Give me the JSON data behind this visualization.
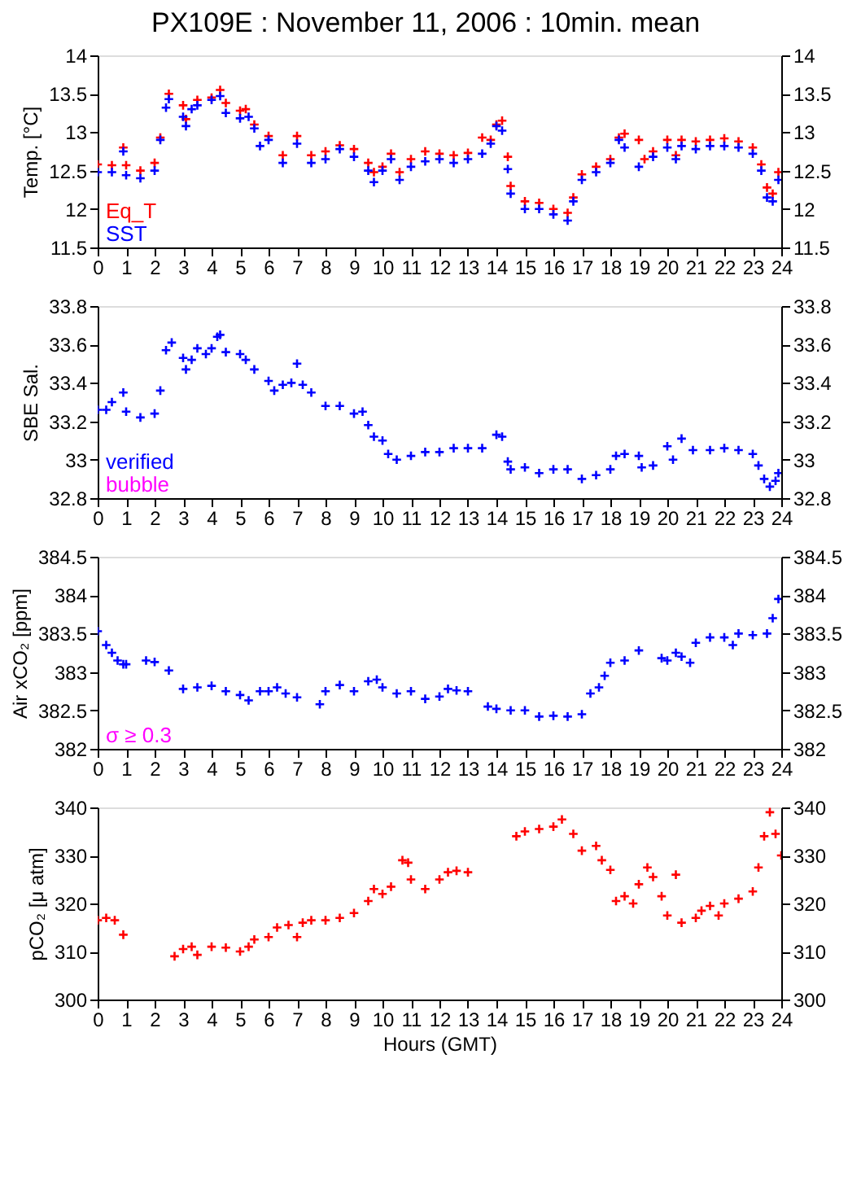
{
  "chart_data": [
    {
      "type": "scatter",
      "title": "PX109E : November 11, 2006 : 10min. mean",
      "ylabel": "Temp. [°C]",
      "xlim": [
        0,
        24
      ],
      "xticks": [
        0,
        1,
        2,
        3,
        4,
        5,
        6,
        7,
        8,
        9,
        10,
        11,
        12,
        13,
        14,
        15,
        16,
        17,
        18,
        19,
        20,
        21,
        22,
        23,
        24
      ],
      "ylim": [
        11.5,
        14
      ],
      "yticks": [
        11.5,
        12,
        12.5,
        13,
        13.5,
        14
      ],
      "y2lim": [
        11.5,
        14
      ],
      "y2ticks": [
        11.5,
        12,
        12.5,
        13,
        13.5,
        14
      ],
      "marker": "cross",
      "legend": "bottom left",
      "grid": false,
      "series": [
        {
          "name": "Eq_T",
          "color": "#ff0000",
          "x": [
            0,
            0.5,
            0.9,
            1,
            1.5,
            2,
            2.2,
            2.5,
            3,
            3.1,
            3.5,
            4,
            4.3,
            4.5,
            5,
            5.2,
            5.5,
            6,
            6.5,
            7,
            7.5,
            8,
            8.5,
            9,
            9.5,
            9.7,
            10,
            10.3,
            10.6,
            11,
            11.5,
            12,
            12.5,
            13,
            13.5,
            13.8,
            14,
            14.2,
            14.4,
            14.5,
            15,
            15.5,
            16,
            16.5,
            16.7,
            17,
            17.5,
            18,
            18.3,
            18.5,
            19,
            19.2,
            19.5,
            20,
            20.3,
            20.5,
            21,
            21.5,
            22,
            22.5,
            23,
            23.3,
            23.5,
            23.7,
            23.9
          ],
          "values": [
            12.58,
            12.57,
            12.8,
            12.57,
            12.5,
            12.6,
            12.93,
            13.5,
            13.35,
            13.17,
            13.42,
            13.45,
            13.55,
            13.38,
            13.28,
            13.3,
            13.1,
            12.95,
            12.7,
            12.95,
            12.7,
            12.75,
            12.83,
            12.78,
            12.6,
            12.48,
            12.55,
            12.72,
            12.48,
            12.65,
            12.75,
            12.72,
            12.7,
            12.73,
            12.93,
            12.9,
            13.1,
            13.15,
            12.68,
            12.3,
            12.1,
            12.08,
            12.0,
            11.95,
            12.15,
            12.45,
            12.55,
            12.65,
            12.93,
            12.98,
            12.9,
            12.65,
            12.75,
            12.9,
            12.7,
            12.9,
            12.88,
            12.9,
            12.92,
            12.88,
            12.8,
            12.58,
            12.28,
            12.2,
            12.48
          ]
        },
        {
          "name": "SST",
          "color": "#0000ff",
          "x": [
            0,
            0.5,
            0.9,
            1,
            1.5,
            2,
            2.2,
            2.4,
            2.5,
            3,
            3.1,
            3.3,
            3.5,
            4,
            4.3,
            4.5,
            5,
            5.3,
            5.5,
            5.7,
            6,
            6.5,
            7,
            7.5,
            8,
            8.5,
            9,
            9.5,
            9.7,
            10,
            10.3,
            10.6,
            11,
            11.5,
            12,
            12.5,
            13,
            13.5,
            13.8,
            14,
            14.2,
            14.4,
            14.5,
            15,
            15.5,
            16,
            16.5,
            16.7,
            17,
            17.5,
            18,
            18.3,
            18.5,
            19,
            19.5,
            20,
            20.3,
            20.5,
            21,
            21.5,
            22,
            22.5,
            23,
            23.3,
            23.5,
            23.7,
            23.9
          ],
          "values": [
            12.48,
            12.48,
            12.75,
            12.44,
            12.4,
            12.5,
            12.9,
            13.32,
            13.43,
            13.2,
            13.08,
            13.3,
            13.35,
            13.42,
            13.47,
            13.25,
            13.18,
            13.2,
            13.05,
            12.82,
            12.9,
            12.6,
            12.85,
            12.6,
            12.65,
            12.78,
            12.68,
            12.5,
            12.35,
            12.5,
            12.65,
            12.38,
            12.55,
            12.62,
            12.65,
            12.6,
            12.65,
            12.72,
            12.85,
            13.08,
            13.02,
            12.52,
            12.2,
            12.0,
            12.0,
            11.93,
            11.85,
            12.1,
            12.38,
            12.48,
            12.6,
            12.9,
            12.8,
            12.55,
            12.68,
            12.8,
            12.65,
            12.82,
            12.78,
            12.82,
            12.82,
            12.8,
            12.72,
            12.5,
            12.15,
            12.1,
            12.38
          ]
        }
      ]
    },
    {
      "type": "scatter",
      "ylabel": "SBE Sal.",
      "xlim": [
        0,
        24
      ],
      "xticks": [
        0,
        1,
        2,
        3,
        4,
        5,
        6,
        7,
        8,
        9,
        10,
        11,
        12,
        13,
        14,
        15,
        16,
        17,
        18,
        19,
        20,
        21,
        22,
        23,
        24
      ],
      "ylim": [
        32.8,
        33.8
      ],
      "yticks": [
        32.8,
        33,
        33.2,
        33.4,
        33.6,
        33.8
      ],
      "y2lim": [
        32.8,
        33.8
      ],
      "y2ticks": [
        32.8,
        33,
        33.2,
        33.4,
        33.6,
        33.8
      ],
      "marker": "cross",
      "legend": "bottom left",
      "grid": false,
      "series": [
        {
          "name": "verified",
          "color": "#0000ff",
          "x": [
            0,
            0.3,
            0.5,
            0.9,
            1,
            1.5,
            2,
            2.2,
            2.4,
            2.6,
            3,
            3.1,
            3.3,
            3.5,
            3.8,
            4,
            4.2,
            4.3,
            4.5,
            5,
            5.2,
            5.5,
            6,
            6.2,
            6.5,
            6.8,
            7,
            7.2,
            7.5,
            8,
            8.5,
            9,
            9.3,
            9.5,
            9.7,
            10,
            10.2,
            10.5,
            11,
            11.5,
            12,
            12.5,
            13,
            13.5,
            14,
            14.2,
            14.4,
            14.5,
            15,
            15.5,
            16,
            16.5,
            17,
            17.5,
            18,
            18.2,
            18.5,
            19,
            19.1,
            19.5,
            20,
            20.2,
            20.5,
            20.9,
            21.5,
            22,
            22.5,
            23,
            23.2,
            23.4,
            23.6,
            23.8,
            23.9
          ],
          "values": [
            33.26,
            33.26,
            33.3,
            33.35,
            33.25,
            33.22,
            33.24,
            33.36,
            33.57,
            33.61,
            33.53,
            33.47,
            33.52,
            33.58,
            33.55,
            33.58,
            33.64,
            33.65,
            33.56,
            33.55,
            33.52,
            33.47,
            33.41,
            33.36,
            33.39,
            33.4,
            33.5,
            33.39,
            33.35,
            33.28,
            33.28,
            33.24,
            33.25,
            33.18,
            33.12,
            33.1,
            33.03,
            33.0,
            33.02,
            33.04,
            33.04,
            33.06,
            33.06,
            33.06,
            33.13,
            33.12,
            32.99,
            32.95,
            32.96,
            32.93,
            32.95,
            32.95,
            32.9,
            32.92,
            32.95,
            33.02,
            33.03,
            33.02,
            32.96,
            32.97,
            33.07,
            33.0,
            33.11,
            33.05,
            33.05,
            33.06,
            33.05,
            33.03,
            32.97,
            32.9,
            32.86,
            32.89,
            32.93
          ]
        },
        {
          "name": "bubble",
          "color": "#ff00ff"
        }
      ]
    },
    {
      "type": "scatter",
      "ylabel": "Air xCO₂ [ppm]",
      "xlim": [
        0,
        24
      ],
      "xticks": [
        0,
        1,
        2,
        3,
        4,
        5,
        6,
        7,
        8,
        9,
        10,
        11,
        12,
        13,
        14,
        15,
        16,
        17,
        18,
        19,
        20,
        21,
        22,
        23,
        24
      ],
      "ylim": [
        382,
        384.5
      ],
      "yticks": [
        382,
        382.5,
        383,
        383.5,
        384,
        384.5
      ],
      "y2lim": [
        382,
        384.5
      ],
      "y2ticks": [
        382,
        382.5,
        383,
        383.5,
        384,
        384.5
      ],
      "marker": "cross",
      "grid": false,
      "annotations": [
        "σ ≥ 0.3"
      ],
      "series": [
        {
          "color": "#0000ff",
          "x": [
            0,
            0.3,
            0.5,
            0.7,
            0.9,
            1.0,
            1.7,
            2,
            2.5,
            3,
            3.5,
            4,
            4.5,
            5,
            5.3,
            5.7,
            6,
            6.3,
            6.6,
            7,
            7.8,
            8,
            8.5,
            9,
            9.5,
            9.8,
            10,
            10.5,
            11,
            11.5,
            12,
            12.3,
            12.6,
            13,
            13.7,
            14,
            14.5,
            15,
            15.5,
            16,
            16.5,
            17,
            17.3,
            17.6,
            17.8,
            18,
            18.5,
            19,
            19.8,
            20,
            20.3,
            20.5,
            20.8,
            21,
            21.5,
            22,
            22.3,
            22.5,
            23,
            23.5,
            23.7,
            23.9
          ],
          "values": [
            383.53,
            383.35,
            383.25,
            383.15,
            383.1,
            383.1,
            383.15,
            383.13,
            383.02,
            382.78,
            382.8,
            382.82,
            382.75,
            382.7,
            382.63,
            382.75,
            382.75,
            382.8,
            382.72,
            382.67,
            382.58,
            382.75,
            382.83,
            382.75,
            382.88,
            382.9,
            382.8,
            382.72,
            382.75,
            382.65,
            382.68,
            382.78,
            382.76,
            382.75,
            382.55,
            382.52,
            382.5,
            382.5,
            382.42,
            382.43,
            382.42,
            382.45,
            382.72,
            382.8,
            382.95,
            383.12,
            383.15,
            383.28,
            383.18,
            383.15,
            383.25,
            383.2,
            383.12,
            383.38,
            383.45,
            383.45,
            383.35,
            383.5,
            383.48,
            383.5,
            383.7,
            383.95
          ]
        }
      ]
    },
    {
      "type": "scatter",
      "ylabel": "pCO₂ [μ atm]",
      "xlabel": "Hours (GMT)",
      "xlim": [
        0,
        24
      ],
      "xticks": [
        0,
        1,
        2,
        3,
        4,
        5,
        6,
        7,
        8,
        9,
        10,
        11,
        12,
        13,
        14,
        15,
        16,
        17,
        18,
        19,
        20,
        21,
        22,
        23,
        24
      ],
      "ylim": [
        300,
        340
      ],
      "yticks": [
        300,
        310,
        320,
        330,
        340
      ],
      "y2lim": [
        300,
        340
      ],
      "y2ticks": [
        300,
        310,
        320,
        330,
        340
      ],
      "marker": "cross",
      "grid": false,
      "series": [
        {
          "color": "#ff0000",
          "x": [
            0,
            0.3,
            0.6,
            0.9,
            2.7,
            3,
            3.3,
            3.5,
            4,
            4.5,
            5,
            5.3,
            5.5,
            6,
            6.3,
            6.7,
            7,
            7.2,
            7.5,
            8,
            8.5,
            9,
            9.5,
            9.7,
            10,
            10.3,
            10.7,
            10.9,
            11,
            11.5,
            12,
            12.3,
            12.6,
            13,
            14.7,
            15,
            15.5,
            16,
            16.3,
            16.7,
            17,
            17.5,
            17.7,
            18,
            18.2,
            18.5,
            18.8,
            19,
            19.3,
            19.5,
            19.8,
            20,
            20.3,
            20.5,
            21,
            21.2,
            21.5,
            21.8,
            22,
            22.5,
            23,
            23.2,
            23.4,
            23.6,
            23.8,
            24
          ],
          "values": [
            316.5,
            317,
            316.5,
            313.5,
            309,
            310.5,
            311,
            309.3,
            311,
            310.8,
            310,
            311,
            312.5,
            313,
            315,
            315.5,
            313,
            316,
            316.5,
            316.5,
            317,
            318,
            320.5,
            323,
            322,
            323.5,
            329,
            328.5,
            325,
            323,
            325,
            326.5,
            326.8,
            326.5,
            334,
            335,
            335.5,
            336,
            337.5,
            334.5,
            331,
            332,
            329,
            327,
            320.5,
            321.5,
            320,
            324,
            327.5,
            325.5,
            321.5,
            317.5,
            326,
            316,
            317,
            318.5,
            319.5,
            317.5,
            320,
            321,
            322.5,
            327.5,
            334,
            339,
            334.5,
            330
          ]
        }
      ]
    }
  ]
}
